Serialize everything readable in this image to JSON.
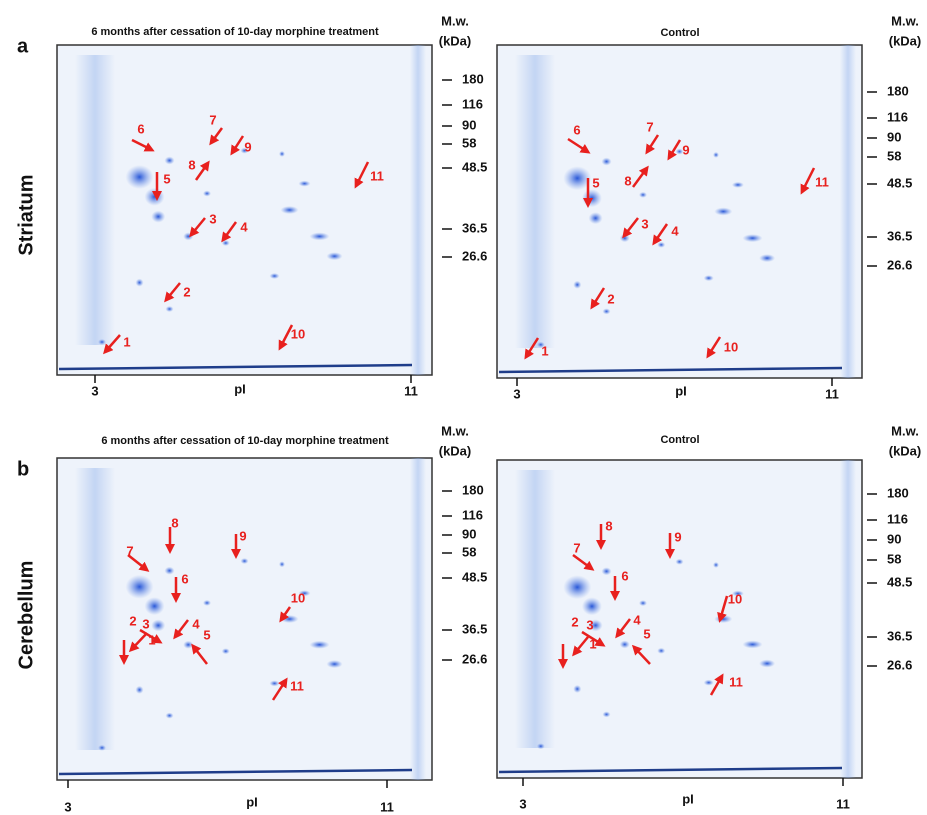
{
  "rows": [
    {
      "letter": "a",
      "label": "Striatum",
      "panels": [
        {
          "title": "6 months after cessation of 10-day morphine treatment",
          "mw_header": [
            "M.w.",
            "(kDa)"
          ],
          "mw": [
            "180",
            "116",
            "90",
            "58",
            "48.5",
            "36.5",
            "26.6"
          ],
          "pi": [
            "3",
            "pI",
            "11"
          ],
          "arrows": [
            "1",
            "2",
            "3",
            "4",
            "5",
            "6",
            "7",
            "8",
            "9",
            "10",
            "11"
          ]
        },
        {
          "title": "Control",
          "mw_header": [
            "M.w.",
            "(kDa)"
          ],
          "mw": [
            "180",
            "116",
            "90",
            "58",
            "48.5",
            "36.5",
            "26.6"
          ],
          "pi": [
            "3",
            "pI",
            "11"
          ],
          "arrows": [
            "1",
            "2",
            "3",
            "4",
            "5",
            "6",
            "7",
            "8",
            "9",
            "10",
            "11"
          ]
        }
      ]
    },
    {
      "letter": "b",
      "label": "Cerebellum",
      "panels": [
        {
          "title": "6 months after cessation of 10-day morphine treatment",
          "mw_header": [
            "M.w.",
            "(kDa)"
          ],
          "mw": [
            "180",
            "116",
            "90",
            "58",
            "48.5",
            "36.5",
            "26.6"
          ],
          "pi": [
            "3",
            "pI",
            "11"
          ],
          "arrows": [
            "1",
            "2",
            "3",
            "4",
            "5",
            "6",
            "7",
            "8",
            "9",
            "10",
            "11"
          ]
        },
        {
          "title": "Control",
          "mw_header": [
            "M.w.",
            "(kDa)"
          ],
          "mw": [
            "180",
            "116",
            "90",
            "58",
            "48.5",
            "36.5",
            "26.6"
          ],
          "pi": [
            "3",
            "pI",
            "11"
          ],
          "arrows": [
            "1",
            "2",
            "3",
            "4",
            "5",
            "6",
            "7",
            "8",
            "9",
            "10",
            "11"
          ]
        }
      ]
    }
  ]
}
